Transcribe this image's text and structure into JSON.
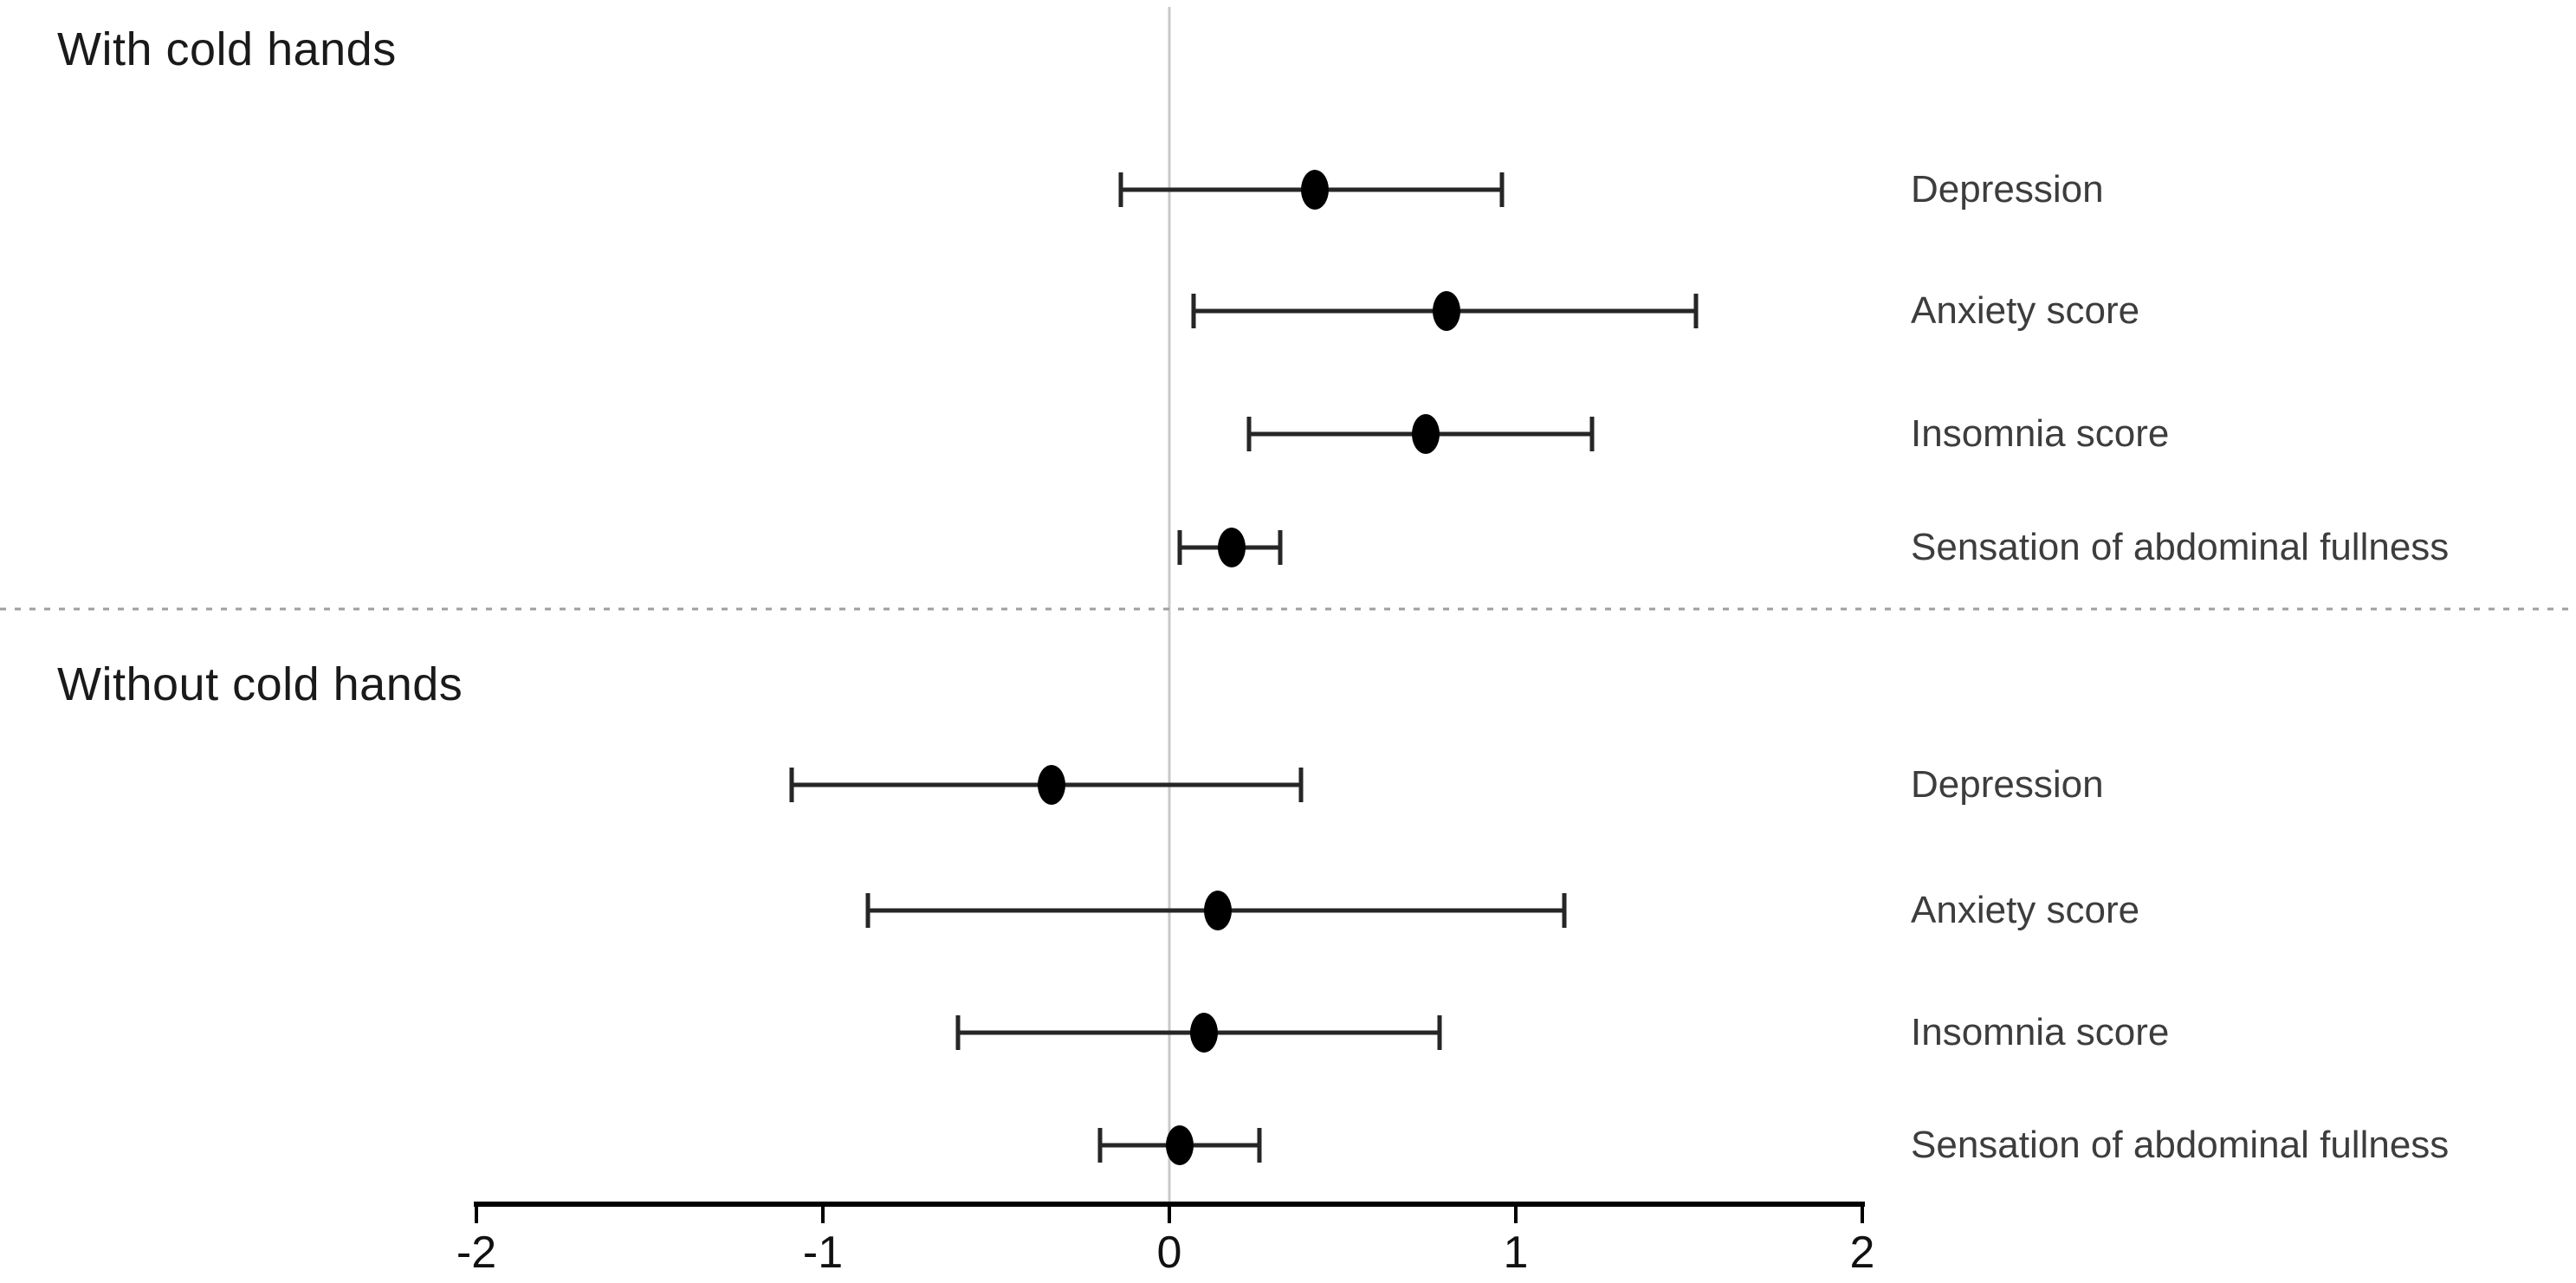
{
  "chart_data": {
    "type": "scatter",
    "subtype": "forest_plot_dot_and_ci_whiskers",
    "title": "",
    "xlabel": "",
    "ylabel": "",
    "xlim": [
      -2,
      2
    ],
    "x_ticks": [
      -2,
      -1,
      0,
      1,
      2
    ],
    "x_tick_labels": [
      "-2",
      "-1",
      "0",
      "1",
      "2"
    ],
    "reference_line_x": 0,
    "grid": "vertical reference line at x=0 only",
    "legend_position": "none",
    "sections": [
      {
        "title": "With cold hands",
        "rows": [
          {
            "label": "Depression",
            "estimate": 0.42,
            "ci_low": -0.14,
            "ci_high": 0.96
          },
          {
            "label": "Anxiety score",
            "estimate": 0.8,
            "ci_low": 0.07,
            "ci_high": 1.52
          },
          {
            "label": "Insomnia score",
            "estimate": 0.74,
            "ci_low": 0.23,
            "ci_high": 1.22
          },
          {
            "label": "Sensation of abdominal fullness",
            "estimate": 0.18,
            "ci_low": 0.03,
            "ci_high": 0.32
          }
        ]
      },
      {
        "title": "Without cold hands",
        "rows": [
          {
            "label": "Depression",
            "estimate": -0.34,
            "ci_low": -1.09,
            "ci_high": 0.38
          },
          {
            "label": "Anxiety score",
            "estimate": 0.14,
            "ci_low": -0.87,
            "ci_high": 1.14
          },
          {
            "label": "Insomnia score",
            "estimate": 0.1,
            "ci_low": -0.61,
            "ci_high": 0.78
          },
          {
            "label": "Sensation of abdominal fullness",
            "estimate": 0.03,
            "ci_low": -0.2,
            "ci_high": 0.26
          }
        ]
      }
    ],
    "colors": {
      "marker": "#000000",
      "error_bar": "#262626",
      "axis": "#000000",
      "tick_label": "#111111",
      "section_title": "#1a1a1a",
      "row_label": "#3d3d3d",
      "reference_line": "#c9c9c9",
      "divider": "#9e9e9e",
      "background": "#ffffff"
    }
  }
}
